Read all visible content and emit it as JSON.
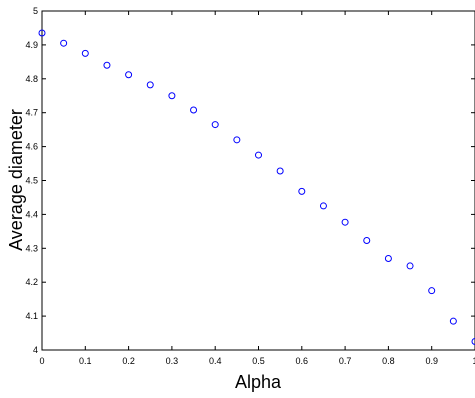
{
  "chart_data": {
    "type": "scatter",
    "title": "",
    "xlabel": "Alpha",
    "ylabel": "Average diameter",
    "xlim": [
      0,
      1
    ],
    "ylim": [
      4,
      5
    ],
    "xticks": [
      0,
      0.1,
      0.2,
      0.3,
      0.4,
      0.5,
      0.6,
      0.7,
      0.8,
      0.9,
      1
    ],
    "xtick_labels": [
      "0",
      "0.1",
      "0.2",
      "0.3",
      "0.4",
      "0.5",
      "0.6",
      "0.7",
      "0.8",
      "0.9",
      "1"
    ],
    "yticks": [
      4,
      4.1,
      4.2,
      4.3,
      4.4,
      4.5,
      4.6,
      4.7,
      4.8,
      4.9,
      5
    ],
    "ytick_labels": [
      "4",
      "4.1",
      "4.2",
      "4.3",
      "4.4",
      "4.5",
      "4.6",
      "4.7",
      "4.8",
      "4.9",
      "5"
    ],
    "grid": false,
    "marker": "circle-open",
    "marker_color": "#0000ff",
    "series": [
      {
        "x": [
          0,
          0.05,
          0.1,
          0.15,
          0.2,
          0.25,
          0.3,
          0.35,
          0.4,
          0.45,
          0.5,
          0.55,
          0.6,
          0.65,
          0.7,
          0.75,
          0.8,
          0.85,
          0.9,
          0.95,
          1
        ],
        "y": [
          4.935,
          4.905,
          4.875,
          4.84,
          4.812,
          4.782,
          4.75,
          4.708,
          4.665,
          4.62,
          4.575,
          4.528,
          4.468,
          4.425,
          4.377,
          4.323,
          4.27,
          4.248,
          4.175,
          4.085,
          4.025
        ]
      }
    ]
  }
}
